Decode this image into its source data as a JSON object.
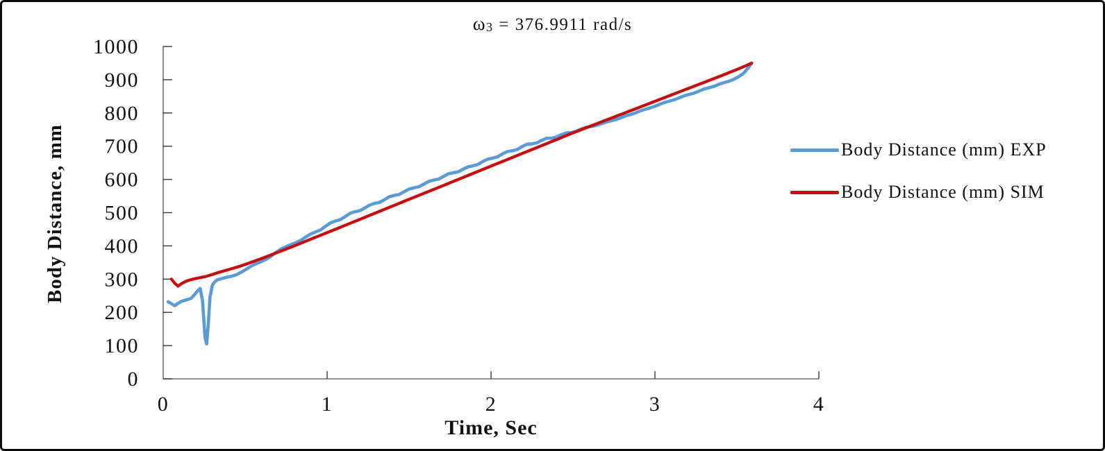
{
  "title": {
    "omega": "ω",
    "sub": "3",
    "rest": " = 376.9911 rad/s"
  },
  "chart_data": {
    "type": "line",
    "title": "ω3 = 376.9911 rad/s",
    "xlabel": "Time, Sec",
    "ylabel": "Body Distance, mm",
    "xlim": [
      0,
      4
    ],
    "ylim": [
      0,
      1000
    ],
    "x_ticks": [
      0,
      1,
      2,
      3,
      4
    ],
    "y_ticks": [
      0,
      100,
      200,
      300,
      400,
      500,
      600,
      700,
      800,
      900,
      1000
    ],
    "grid": false,
    "legend_position": "right-middle",
    "axis_color": "#6e6e6e",
    "tick_color": "#404040",
    "series": [
      {
        "name": "Body Distance (mm) EXP",
        "color": "#5b9bd5",
        "stroke_width": 4.6,
        "points": [
          [
            0.03,
            232
          ],
          [
            0.05,
            226
          ],
          [
            0.07,
            220
          ],
          [
            0.09,
            227
          ],
          [
            0.11,
            233
          ],
          [
            0.13,
            236
          ],
          [
            0.15,
            239
          ],
          [
            0.17,
            242
          ],
          [
            0.19,
            253
          ],
          [
            0.21,
            265
          ],
          [
            0.225,
            272
          ],
          [
            0.24,
            235
          ],
          [
            0.255,
            125
          ],
          [
            0.265,
            105
          ],
          [
            0.275,
            165
          ],
          [
            0.285,
            245
          ],
          [
            0.3,
            282
          ],
          [
            0.315,
            292
          ],
          [
            0.33,
            298
          ],
          [
            0.36,
            302
          ],
          [
            0.39,
            306
          ],
          [
            0.42,
            309
          ],
          [
            0.45,
            314
          ],
          [
            0.48,
            322
          ],
          [
            0.51,
            331
          ],
          [
            0.54,
            340
          ],
          [
            0.57,
            347
          ],
          [
            0.6,
            353
          ],
          [
            0.63,
            360
          ],
          [
            0.66,
            370
          ],
          [
            0.69,
            381
          ],
          [
            0.72,
            391
          ],
          [
            0.75,
            398
          ],
          [
            0.78,
            404
          ],
          [
            0.81,
            410
          ],
          [
            0.84,
            417
          ],
          [
            0.87,
            427
          ],
          [
            0.9,
            436
          ],
          [
            0.93,
            442
          ],
          [
            0.96,
            448
          ],
          [
            0.99,
            459
          ],
          [
            1.02,
            469
          ],
          [
            1.05,
            475
          ],
          [
            1.08,
            479
          ],
          [
            1.11,
            488
          ],
          [
            1.14,
            498
          ],
          [
            1.17,
            503
          ],
          [
            1.2,
            506
          ],
          [
            1.23,
            514
          ],
          [
            1.26,
            523
          ],
          [
            1.29,
            528
          ],
          [
            1.32,
            531
          ],
          [
            1.35,
            539
          ],
          [
            1.38,
            548
          ],
          [
            1.41,
            552
          ],
          [
            1.44,
            555
          ],
          [
            1.47,
            563
          ],
          [
            1.5,
            571
          ],
          [
            1.53,
            575
          ],
          [
            1.56,
            578
          ],
          [
            1.59,
            586
          ],
          [
            1.62,
            594
          ],
          [
            1.65,
            598
          ],
          [
            1.68,
            601
          ],
          [
            1.71,
            609
          ],
          [
            1.74,
            617
          ],
          [
            1.77,
            620
          ],
          [
            1.8,
            623
          ],
          [
            1.83,
            631
          ],
          [
            1.86,
            638
          ],
          [
            1.89,
            641
          ],
          [
            1.92,
            645
          ],
          [
            1.95,
            654
          ],
          [
            1.98,
            661
          ],
          [
            2.01,
            664
          ],
          [
            2.04,
            668
          ],
          [
            2.07,
            677
          ],
          [
            2.1,
            684
          ],
          [
            2.13,
            686
          ],
          [
            2.16,
            690
          ],
          [
            2.19,
            699
          ],
          [
            2.22,
            706
          ],
          [
            2.25,
            707
          ],
          [
            2.28,
            710
          ],
          [
            2.31,
            718
          ],
          [
            2.34,
            724
          ],
          [
            2.37,
            724
          ],
          [
            2.4,
            728
          ],
          [
            2.43,
            735
          ],
          [
            2.46,
            740
          ],
          [
            2.49,
            741
          ],
          [
            2.52,
            745
          ],
          [
            2.55,
            752
          ],
          [
            2.58,
            757
          ],
          [
            2.61,
            759
          ],
          [
            2.64,
            762
          ],
          [
            2.67,
            767
          ],
          [
            2.7,
            772
          ],
          [
            2.73,
            776
          ],
          [
            2.76,
            780
          ],
          [
            2.79,
            785
          ],
          [
            2.82,
            791
          ],
          [
            2.85,
            795
          ],
          [
            2.88,
            800
          ],
          [
            2.91,
            806
          ],
          [
            2.94,
            811
          ],
          [
            2.97,
            815
          ],
          [
            3.0,
            820
          ],
          [
            3.03,
            826
          ],
          [
            3.06,
            832
          ],
          [
            3.09,
            836
          ],
          [
            3.12,
            840
          ],
          [
            3.15,
            846
          ],
          [
            3.18,
            852
          ],
          [
            3.21,
            856
          ],
          [
            3.24,
            860
          ],
          [
            3.27,
            866
          ],
          [
            3.3,
            872
          ],
          [
            3.33,
            876
          ],
          [
            3.36,
            880
          ],
          [
            3.39,
            886
          ],
          [
            3.42,
            891
          ],
          [
            3.45,
            895
          ],
          [
            3.48,
            901
          ],
          [
            3.51,
            909
          ],
          [
            3.54,
            919
          ],
          [
            3.57,
            936
          ],
          [
            3.59,
            950
          ]
        ]
      },
      {
        "name": "Body Distance (mm) SIM",
        "color": "#c50f0f",
        "stroke_width": 4.3,
        "points": [
          [
            0.05,
            300
          ],
          [
            0.07,
            288
          ],
          [
            0.09,
            279
          ],
          [
            0.11,
            286
          ],
          [
            0.14,
            294
          ],
          [
            0.18,
            300
          ],
          [
            0.22,
            304
          ],
          [
            0.26,
            308
          ],
          [
            0.3,
            314
          ],
          [
            0.35,
            322
          ],
          [
            0.4,
            329
          ],
          [
            0.45,
            336
          ],
          [
            0.5,
            344
          ],
          [
            0.6,
            362
          ],
          [
            0.7,
            381
          ],
          [
            0.8,
            400
          ],
          [
            0.9,
            420
          ],
          [
            1.0,
            440
          ],
          [
            1.1,
            460
          ],
          [
            1.2,
            480
          ],
          [
            1.3,
            500
          ],
          [
            1.4,
            520
          ],
          [
            1.5,
            540
          ],
          [
            1.6,
            560
          ],
          [
            1.7,
            580
          ],
          [
            1.8,
            600
          ],
          [
            1.9,
            620
          ],
          [
            2.0,
            640
          ],
          [
            2.1,
            660
          ],
          [
            2.2,
            680
          ],
          [
            2.3,
            700
          ],
          [
            2.4,
            720
          ],
          [
            2.5,
            740
          ],
          [
            2.6,
            759
          ],
          [
            2.7,
            778
          ],
          [
            2.8,
            797
          ],
          [
            2.9,
            816
          ],
          [
            3.0,
            835
          ],
          [
            3.1,
            854
          ],
          [
            3.2,
            873
          ],
          [
            3.3,
            892
          ],
          [
            3.4,
            911
          ],
          [
            3.5,
            931
          ],
          [
            3.55,
            941
          ],
          [
            3.59,
            950
          ]
        ]
      }
    ]
  }
}
